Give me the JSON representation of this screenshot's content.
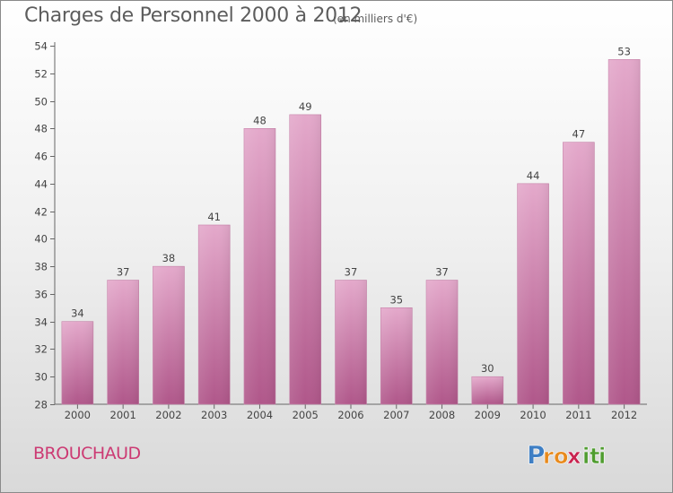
{
  "chart_data": {
    "type": "bar",
    "title": "Charges de Personnel 2000 à 2012",
    "subtitle": "(en milliers d'€)",
    "categories": [
      "2000",
      "2001",
      "2002",
      "2003",
      "2004",
      "2005",
      "2006",
      "2007",
      "2008",
      "2009",
      "2010",
      "2011",
      "2012"
    ],
    "values": [
      34,
      37,
      38,
      41,
      48,
      49,
      37,
      35,
      37,
      30,
      44,
      47,
      53
    ],
    "xlabel": "",
    "ylabel": "",
    "ylim": [
      28,
      54
    ],
    "yticks": [
      28,
      30,
      32,
      34,
      36,
      38,
      40,
      42,
      44,
      46,
      48,
      50,
      52,
      54
    ],
    "grid": false,
    "bar_color": "#c9699d",
    "bar_color_light": "#e4a9cb",
    "bar_color_dark": "#b0578a"
  },
  "commune": "BROUCHAUD",
  "logo": {
    "text": "Proxiti",
    "letters": [
      {
        "ch": "P",
        "color": "#3f7fc4"
      },
      {
        "ch": "r",
        "color": "#e88a1c"
      },
      {
        "ch": "o",
        "color": "#e88a1c"
      },
      {
        "ch": "x",
        "color": "#c8234f"
      },
      {
        "ch": "i",
        "color": "#4f9c2f"
      },
      {
        "ch": "t",
        "color": "#4f9c2f"
      },
      {
        "ch": "i",
        "color": "#4f9c2f"
      }
    ]
  }
}
